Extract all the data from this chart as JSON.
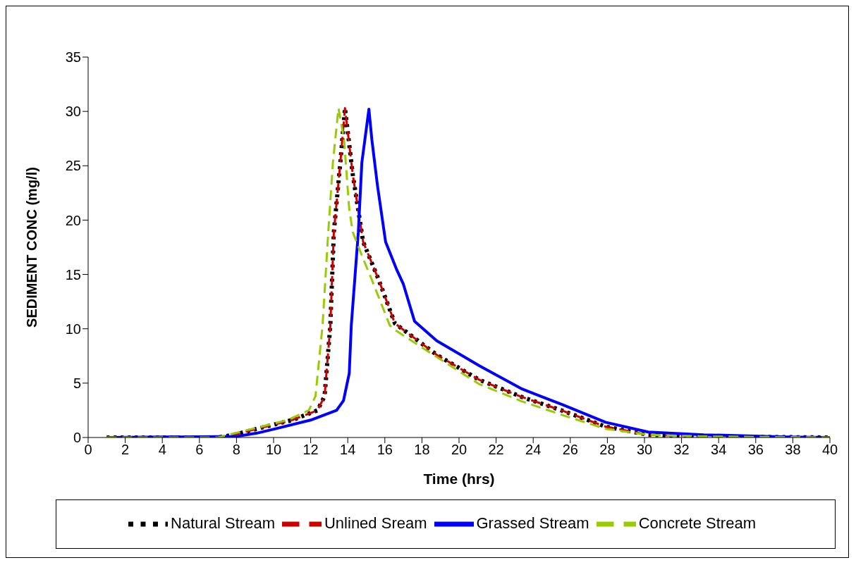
{
  "chart_data": {
    "type": "line",
    "xlabel": "Time (hrs)",
    "ylabel": "SEDIMENT CONC (mg/l)",
    "xlim": [
      0,
      40
    ],
    "xticks": [
      0,
      2,
      4,
      6,
      8,
      10,
      12,
      14,
      16,
      18,
      20,
      22,
      24,
      26,
      28,
      30,
      32,
      34,
      36,
      38,
      40
    ],
    "ylim": [
      0,
      35
    ],
    "yticks": [
      0,
      5,
      10,
      15,
      20,
      25,
      30,
      35
    ],
    "grid": false,
    "legend": "bottom",
    "marker": "none",
    "series": [
      {
        "name": "Natural Stream",
        "color": "#000000",
        "line_style": "dotted",
        "x": [
          1,
          7,
          8,
          9.1,
          11,
          12.37,
          12.75,
          13.06,
          13.25,
          13.6,
          13.85,
          14.27,
          14.83,
          15.67,
          16.54,
          18.8,
          21.1,
          23.35,
          25.6,
          27.9,
          30.2,
          33,
          36,
          40
        ],
        "values": [
          0,
          0,
          0.3,
          0.8,
          1.6,
          2.5,
          3.8,
          10.3,
          18.9,
          25.3,
          30.3,
          24.2,
          18,
          14.5,
          10.5,
          7.6,
          5.3,
          3.75,
          2.45,
          1,
          0.25,
          0.1,
          0.05,
          0
        ]
      },
      {
        "name": "Unlined Sream",
        "color": "#cc0000",
        "line_style": "dashed",
        "x": [
          1,
          7,
          8,
          9.1,
          11,
          12.37,
          12.75,
          13.06,
          13.25,
          13.6,
          13.85,
          14.27,
          14.83,
          15.67,
          16.54,
          18.8,
          21.1,
          23.35,
          25.6,
          27.9,
          30.2,
          33,
          36,
          40
        ],
        "values": [
          0,
          0,
          0.3,
          0.8,
          1.6,
          2.5,
          3.8,
          10.3,
          18.9,
          25.3,
          30.3,
          24.2,
          18,
          14.5,
          10.5,
          7.6,
          5.3,
          3.75,
          2.45,
          1,
          0.25,
          0.1,
          0.05,
          0
        ]
      },
      {
        "name": "Grassed Stream",
        "color": "#0000ff",
        "line_style": "solid",
        "x": [
          1,
          8,
          9.1,
          10.1,
          12,
          13.4,
          13.77,
          14.08,
          14.19,
          14.57,
          14.76,
          15.14,
          15.3,
          15.6,
          16.04,
          16.65,
          17,
          17.6,
          18.8,
          21.1,
          23.35,
          25.6,
          27.9,
          30.2,
          33.2,
          37.7,
          40
        ],
        "values": [
          0,
          0.1,
          0.4,
          0.8,
          1.6,
          2.5,
          3.4,
          5.9,
          10.3,
          18.9,
          25.3,
          30.2,
          27.4,
          23.2,
          18,
          15.4,
          14.1,
          10.7,
          8.9,
          6.6,
          4.5,
          3,
          1.4,
          0.5,
          0.25,
          0.05,
          0
        ]
      },
      {
        "name": "Concrete Stream",
        "color": "#99cc00",
        "line_style": "dashed",
        "x": [
          1,
          7,
          8.86,
          10.75,
          11.9,
          12.26,
          12.64,
          12.95,
          13.2,
          13.5,
          13.8,
          14.08,
          14.27,
          14.77,
          15.3,
          16.27,
          16.54,
          18.8,
          21.1,
          23.35,
          25.6,
          27.9,
          30.2,
          33,
          36,
          40
        ],
        "values": [
          0,
          0,
          0.8,
          1.6,
          2.5,
          3.8,
          10.3,
          18.9,
          25.3,
          30.3,
          27.4,
          21,
          18.9,
          16.7,
          14.5,
          10.3,
          9.9,
          7.4,
          4.9,
          3.35,
          2.05,
          0.8,
          0.25,
          0.1,
          0.05,
          0
        ]
      }
    ]
  }
}
